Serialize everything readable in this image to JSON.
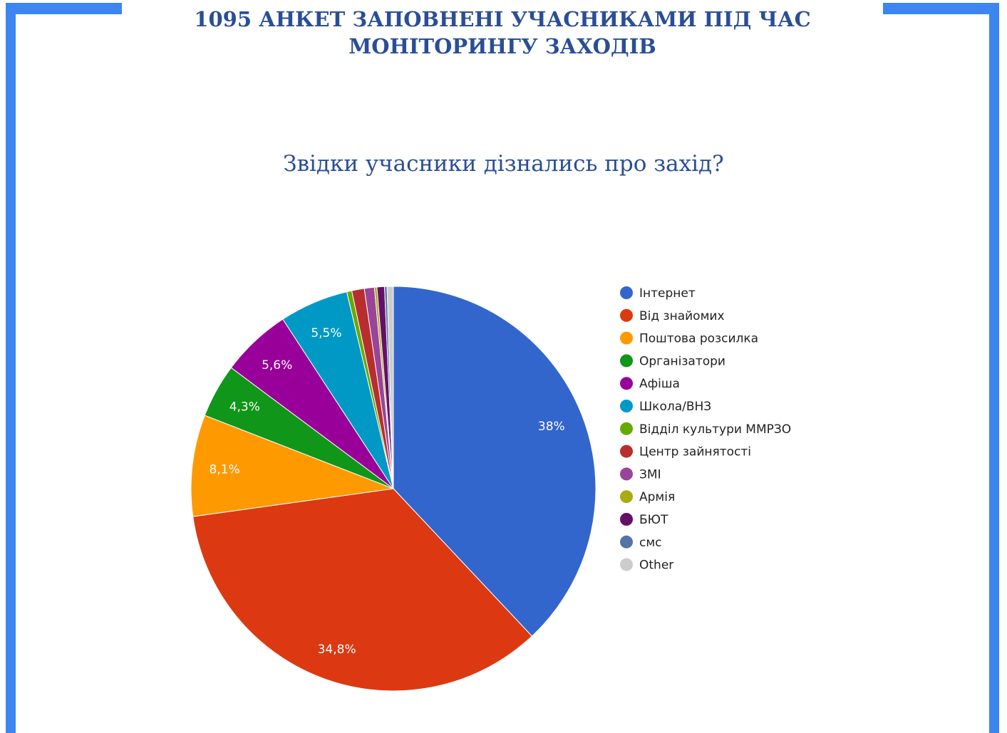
{
  "slide_title": {
    "line1": "1095 АНКЕТ ЗАПОВНЕНІ УЧАСНИКАМИ ПІД ЧАС",
    "line2": "МОНІТОРИНГУ ЗАХОДІВ"
  },
  "accent_color": "#3d85f0",
  "chart_data": {
    "type": "pie",
    "title": "Звідки учасники дізнались про захід?",
    "legend_position": "right",
    "slices": [
      {
        "label": "Інтернет",
        "value": 38.0,
        "display": "38%",
        "color": "#3366cc"
      },
      {
        "label": "Від знайомих",
        "value": 34.8,
        "display": "34,8%",
        "color": "#dc3912"
      },
      {
        "label": "Поштова розсилка",
        "value": 8.1,
        "display": "8,1%",
        "color": "#ff9900"
      },
      {
        "label": "Організатори",
        "value": 4.3,
        "display": "4,3%",
        "color": "#109618"
      },
      {
        "label": "Афіша",
        "value": 5.6,
        "display": "5,6%",
        "color": "#990099"
      },
      {
        "label": "Школа/ВНЗ",
        "value": 5.5,
        "display": "5,5%",
        "color": "#0099c6"
      },
      {
        "label": "Відділ культури ММРЗО",
        "value": 0.4,
        "display": "",
        "color": "#66aa00"
      },
      {
        "label": "Центр зайнятості",
        "value": 1.0,
        "display": "",
        "color": "#b82e2e"
      },
      {
        "label": "ЗМІ",
        "value": 0.8,
        "display": "",
        "color": "#994499"
      },
      {
        "label": "Армія",
        "value": 0.2,
        "display": "",
        "color": "#aaaa11"
      },
      {
        "label": "БЮТ",
        "value": 0.6,
        "display": "",
        "color": "#651067"
      },
      {
        "label": "смс",
        "value": 0.2,
        "display": "",
        "color": "#5574a6"
      },
      {
        "label": "Other",
        "value": 0.5,
        "display": "",
        "color": "#cccccc"
      }
    ]
  }
}
